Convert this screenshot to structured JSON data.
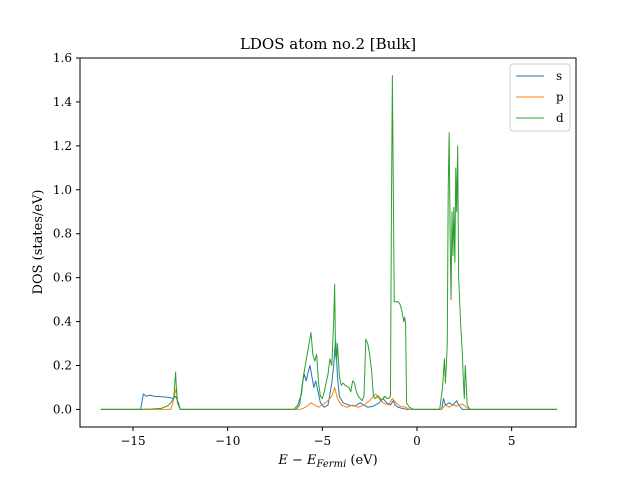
{
  "chart_data": {
    "type": "line",
    "title": "LDOS atom no.2 [Bulk]",
    "xlabel_main": "E − E",
    "xlabel_sub": "Fermi",
    "xlabel_unit": " (eV)",
    "ylabel": "DOS (states/eV)",
    "xlim": [
      -17.8,
      8.4
    ],
    "ylim": [
      -0.08,
      1.6
    ],
    "xticks": [
      -15,
      -10,
      -5,
      0,
      5
    ],
    "xtick_labels": [
      "−15",
      "−10",
      "−5",
      "0",
      "5"
    ],
    "yticks": [
      0.0,
      0.2,
      0.4,
      0.6,
      0.8,
      1.0,
      1.2,
      1.4,
      1.6
    ],
    "ytick_labels": [
      "0.0",
      "0.2",
      "0.4",
      "0.6",
      "0.8",
      "1.0",
      "1.2",
      "1.4",
      "1.6"
    ],
    "grid": false,
    "legend_position": "upper-right",
    "series": [
      {
        "name": "s",
        "color": "#1f77b4",
        "points": [
          [
            -16.7,
            0.0
          ],
          [
            -14.6,
            0.0
          ],
          [
            -14.45,
            0.07
          ],
          [
            -14.3,
            0.06
          ],
          [
            -14.1,
            0.065
          ],
          [
            -13.9,
            0.06
          ],
          [
            -13.5,
            0.058
          ],
          [
            -13.1,
            0.055
          ],
          [
            -12.9,
            0.05
          ],
          [
            -12.75,
            0.06
          ],
          [
            -12.6,
            0.03
          ],
          [
            -12.5,
            0.0
          ],
          [
            -6.4,
            0.0
          ],
          [
            -6.2,
            0.02
          ],
          [
            -6.05,
            0.12
          ],
          [
            -5.95,
            0.16
          ],
          [
            -5.85,
            0.13
          ],
          [
            -5.75,
            0.17
          ],
          [
            -5.65,
            0.2
          ],
          [
            -5.55,
            0.15
          ],
          [
            -5.45,
            0.1
          ],
          [
            -5.35,
            0.13
          ],
          [
            -5.25,
            0.09
          ],
          [
            -5.1,
            0.03
          ],
          [
            -4.9,
            0.01
          ],
          [
            -4.7,
            0.02
          ],
          [
            -4.5,
            0.12
          ],
          [
            -4.4,
            0.2
          ],
          [
            -4.3,
            0.32
          ],
          [
            -4.2,
            0.15
          ],
          [
            -4.1,
            0.06
          ],
          [
            -3.9,
            0.03
          ],
          [
            -3.6,
            0.02
          ],
          [
            -3.3,
            0.015
          ],
          [
            -3.0,
            0.03
          ],
          [
            -2.8,
            0.02
          ],
          [
            -2.6,
            0.01
          ],
          [
            -2.3,
            0.015
          ],
          [
            -2.0,
            0.03
          ],
          [
            -1.8,
            0.05
          ],
          [
            -1.6,
            0.03
          ],
          [
            -1.4,
            0.02
          ],
          [
            -1.25,
            0.04
          ],
          [
            -1.15,
            0.02
          ],
          [
            -1.0,
            0.01
          ],
          [
            -0.8,
            0.005
          ],
          [
            -0.5,
            0.0
          ],
          [
            1.3,
            0.0
          ],
          [
            1.4,
            0.05
          ],
          [
            1.5,
            0.02
          ],
          [
            1.7,
            0.03
          ],
          [
            1.9,
            0.02
          ],
          [
            2.1,
            0.04
          ],
          [
            2.2,
            0.02
          ],
          [
            2.4,
            0.0
          ],
          [
            2.8,
            0.0
          ],
          [
            7.4,
            0.0
          ]
        ]
      },
      {
        "name": "p",
        "color": "#ff7f0e",
        "points": [
          [
            -16.7,
            0.0
          ],
          [
            -13.0,
            0.0
          ],
          [
            -12.9,
            0.03
          ],
          [
            -12.8,
            0.07
          ],
          [
            -12.7,
            0.1
          ],
          [
            -12.65,
            0.03
          ],
          [
            -12.5,
            0.0
          ],
          [
            -6.2,
            0.0
          ],
          [
            -6.0,
            0.005
          ],
          [
            -5.8,
            0.015
          ],
          [
            -5.6,
            0.03
          ],
          [
            -5.4,
            0.02
          ],
          [
            -5.2,
            0.01
          ],
          [
            -5.0,
            0.02
          ],
          [
            -4.7,
            0.04
          ],
          [
            -4.5,
            0.06
          ],
          [
            -4.35,
            0.1
          ],
          [
            -4.2,
            0.05
          ],
          [
            -4.0,
            0.02
          ],
          [
            -3.7,
            0.01
          ],
          [
            -3.4,
            0.02
          ],
          [
            -3.1,
            0.01
          ],
          [
            -2.8,
            0.02
          ],
          [
            -2.5,
            0.04
          ],
          [
            -2.2,
            0.07
          ],
          [
            -2.0,
            0.06
          ],
          [
            -1.8,
            0.03
          ],
          [
            -1.5,
            0.02
          ],
          [
            -1.3,
            0.05
          ],
          [
            -1.1,
            0.03
          ],
          [
            -0.9,
            0.015
          ],
          [
            -0.6,
            0.01
          ],
          [
            -0.4,
            0.0
          ],
          [
            1.3,
            0.0
          ],
          [
            1.5,
            0.02
          ],
          [
            1.7,
            0.01
          ],
          [
            1.9,
            0.02
          ],
          [
            2.1,
            0.015
          ],
          [
            2.4,
            0.025
          ],
          [
            2.6,
            0.01
          ],
          [
            2.8,
            0.0
          ],
          [
            7.4,
            0.0
          ]
        ]
      },
      {
        "name": "d",
        "color": "#2ca02c",
        "points": [
          [
            -16.7,
            0.0
          ],
          [
            -14.6,
            0.0
          ],
          [
            -14.0,
            0.002
          ],
          [
            -13.5,
            0.005
          ],
          [
            -13.2,
            0.015
          ],
          [
            -13.0,
            0.03
          ],
          [
            -12.85,
            0.05
          ],
          [
            -12.75,
            0.17
          ],
          [
            -12.7,
            0.08
          ],
          [
            -12.65,
            0.03
          ],
          [
            -12.5,
            0.0
          ],
          [
            -6.5,
            0.0
          ],
          [
            -6.3,
            0.02
          ],
          [
            -6.1,
            0.07
          ],
          [
            -6.0,
            0.15
          ],
          [
            -5.9,
            0.2
          ],
          [
            -5.8,
            0.25
          ],
          [
            -5.7,
            0.3
          ],
          [
            -5.6,
            0.35
          ],
          [
            -5.5,
            0.25
          ],
          [
            -5.4,
            0.22
          ],
          [
            -5.3,
            0.25
          ],
          [
            -5.2,
            0.12
          ],
          [
            -5.1,
            0.06
          ],
          [
            -5.0,
            0.05
          ],
          [
            -4.9,
            0.08
          ],
          [
            -4.8,
            0.12
          ],
          [
            -4.7,
            0.16
          ],
          [
            -4.6,
            0.23
          ],
          [
            -4.5,
            0.2
          ],
          [
            -4.4,
            0.4
          ],
          [
            -4.35,
            0.57
          ],
          [
            -4.3,
            0.25
          ],
          [
            -4.25,
            0.22
          ],
          [
            -4.2,
            0.3
          ],
          [
            -4.1,
            0.15
          ],
          [
            -4.0,
            0.11
          ],
          [
            -3.9,
            0.12
          ],
          [
            -3.8,
            0.11
          ],
          [
            -3.6,
            0.1
          ],
          [
            -3.5,
            0.08
          ],
          [
            -3.4,
            0.13
          ],
          [
            -3.3,
            0.12
          ],
          [
            -3.2,
            0.08
          ],
          [
            -3.1,
            0.06
          ],
          [
            -3.0,
            0.05
          ],
          [
            -2.9,
            0.04
          ],
          [
            -2.8,
            0.06
          ],
          [
            -2.7,
            0.32
          ],
          [
            -2.6,
            0.3
          ],
          [
            -2.5,
            0.25
          ],
          [
            -2.4,
            0.18
          ],
          [
            -2.3,
            0.06
          ],
          [
            -2.2,
            0.05
          ],
          [
            -2.1,
            0.06
          ],
          [
            -2.0,
            0.05
          ],
          [
            -1.9,
            0.04
          ],
          [
            -1.8,
            0.05
          ],
          [
            -1.7,
            0.06
          ],
          [
            -1.6,
            0.05
          ],
          [
            -1.5,
            0.05
          ],
          [
            -1.4,
            0.06
          ],
          [
            -1.35,
            0.9
          ],
          [
            -1.3,
            1.52
          ],
          [
            -1.25,
            1.0
          ],
          [
            -1.2,
            0.49
          ],
          [
            -1.0,
            0.49
          ],
          [
            -0.9,
            0.48
          ],
          [
            -0.8,
            0.45
          ],
          [
            -0.7,
            0.4
          ],
          [
            -0.65,
            0.42
          ],
          [
            -0.6,
            0.39
          ],
          [
            -0.55,
            0.03
          ],
          [
            -0.4,
            0.01
          ],
          [
            -0.2,
            0.0
          ],
          [
            1.2,
            0.0
          ],
          [
            1.35,
            0.1
          ],
          [
            1.45,
            0.23
          ],
          [
            1.5,
            0.12
          ],
          [
            1.55,
            0.2
          ],
          [
            1.6,
            0.3
          ],
          [
            1.65,
            1.0
          ],
          [
            1.7,
            1.26
          ],
          [
            1.75,
            0.8
          ],
          [
            1.8,
            0.5
          ],
          [
            1.85,
            0.9
          ],
          [
            1.9,
            0.7
          ],
          [
            1.95,
            0.92
          ],
          [
            2.0,
            0.67
          ],
          [
            2.05,
            1.1
          ],
          [
            2.1,
            0.9
          ],
          [
            2.15,
            1.2
          ],
          [
            2.2,
            0.6
          ],
          [
            2.3,
            0.4
          ],
          [
            2.4,
            0.25
          ],
          [
            2.45,
            0.13
          ],
          [
            2.5,
            0.05
          ],
          [
            2.55,
            0.2
          ],
          [
            2.6,
            0.12
          ],
          [
            2.65,
            0.02
          ],
          [
            2.8,
            0.0
          ],
          [
            7.4,
            0.0
          ]
        ]
      }
    ]
  }
}
